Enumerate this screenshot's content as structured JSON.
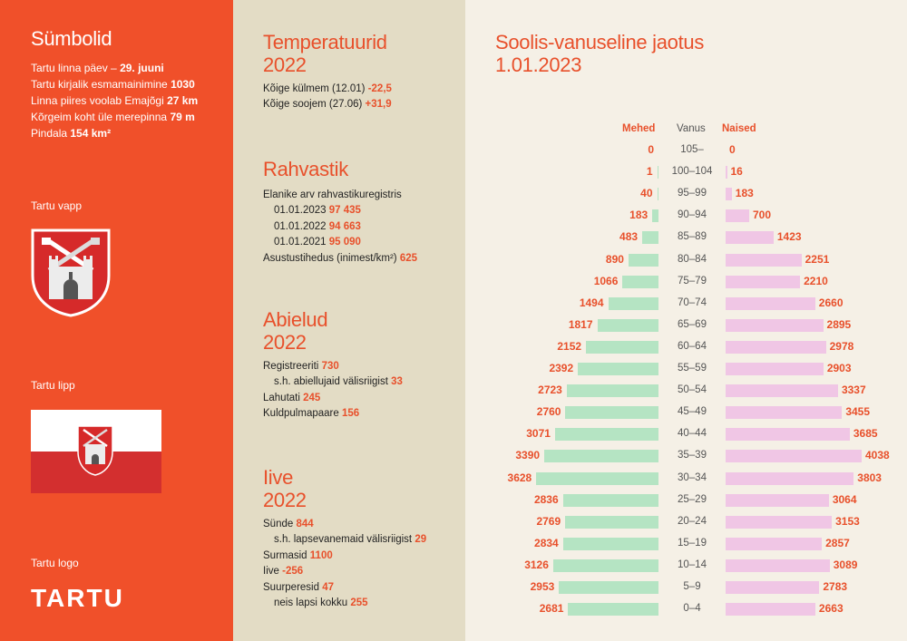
{
  "symbols": {
    "title": "Sümbolid",
    "facts": [
      {
        "label": "Tartu linna päev –",
        "value": "29. juuni"
      },
      {
        "label": "Tartu kirjalik esmamainimine",
        "value": "1030"
      },
      {
        "label": "Linna piires voolab Emajõgi",
        "value": "27 km"
      },
      {
        "label": "Kõrgeim koht üle merepinna",
        "value": "79 m"
      },
      {
        "label": "Pindala",
        "value": "154 km²"
      }
    ],
    "vapp_label": "Tartu vapp",
    "lipp_label": "Tartu lipp",
    "logo_label": "Tartu logo",
    "logo_text": "TARTU",
    "colors": {
      "accent": "#f0502a",
      "flag_red": "#d32f2f",
      "flag_white": "#ffffff"
    }
  },
  "temperatures": {
    "title_line1": "Temperatuurid",
    "title_line2": "2022",
    "rows": [
      {
        "label": "Kõige külmem (12.01)",
        "value": "-22,5"
      },
      {
        "label": "Kõige soojem (27.06)",
        "value": "+31,9"
      }
    ]
  },
  "population": {
    "title": "Rahvastik",
    "registry_label": "Elanike arv rahvastikuregistris",
    "rows": [
      {
        "label": "01.01.2023",
        "value": "97 435"
      },
      {
        "label": "01.01.2022",
        "value": "94 663"
      },
      {
        "label": "01.01.2021",
        "value": "95 090"
      }
    ],
    "density_label": "Asustustihedus (inimest/km²)",
    "density_value": "625"
  },
  "marriages": {
    "title_line1": "Abielud",
    "title_line2": "2022",
    "rows": [
      {
        "label": "Registreeriti",
        "value": "730",
        "indent": false
      },
      {
        "label": "s.h. abiellujaid välisriigist",
        "value": "33",
        "indent": true
      },
      {
        "label": "Lahutati",
        "value": "245",
        "indent": false
      },
      {
        "label": "Kuldpulmapaare",
        "value": "156",
        "indent": false
      }
    ]
  },
  "births": {
    "title_line1": "Iive",
    "title_line2": "2022",
    "rows": [
      {
        "label": "Sünde",
        "value": "844",
        "indent": false
      },
      {
        "label": "s.h. lapsevanemaid välisriigist",
        "value": "29",
        "indent": true
      },
      {
        "label": "Surmasid",
        "value": "1100",
        "indent": false
      },
      {
        "label": "Iive",
        "value": "-256",
        "indent": false
      },
      {
        "label": "Suurperesid",
        "value": "47",
        "indent": false
      },
      {
        "label": "neis lapsi kokku",
        "value": "255",
        "indent": true
      }
    ]
  },
  "chart_data": {
    "type": "bar",
    "title": "Soolis-vanuseline jaotus 1.01.2023",
    "title_line1": "Soolis-vanuseline jaotus",
    "title_line2": "1.01.2023",
    "headers": {
      "men": "Mehed",
      "age": "Vanus",
      "women": "Naised"
    },
    "categories": [
      "105–",
      "100–104",
      "95–99",
      "90–94",
      "85–89",
      "80–84",
      "75–79",
      "70–74",
      "65–69",
      "60–64",
      "55–59",
      "50–54",
      "45–49",
      "40–44",
      "35–39",
      "30–34",
      "25–29",
      "20–24",
      "15–19",
      "10–14",
      "5–9",
      "0–4"
    ],
    "series": [
      {
        "name": "Mehed",
        "color": "#b5e4c3",
        "values": [
          0,
          1,
          40,
          183,
          483,
          890,
          1066,
          1494,
          1817,
          2152,
          2392,
          2723,
          2760,
          3071,
          3390,
          3628,
          2836,
          2769,
          2834,
          3126,
          2953,
          2681
        ]
      },
      {
        "name": "Naised",
        "color": "#f0c6e5",
        "values": [
          0,
          16,
          183,
          700,
          1423,
          2251,
          2210,
          2660,
          2895,
          2978,
          2903,
          3337,
          3455,
          3685,
          4038,
          3803,
          3064,
          3153,
          2857,
          3089,
          2783,
          2663
        ]
      }
    ]
  }
}
